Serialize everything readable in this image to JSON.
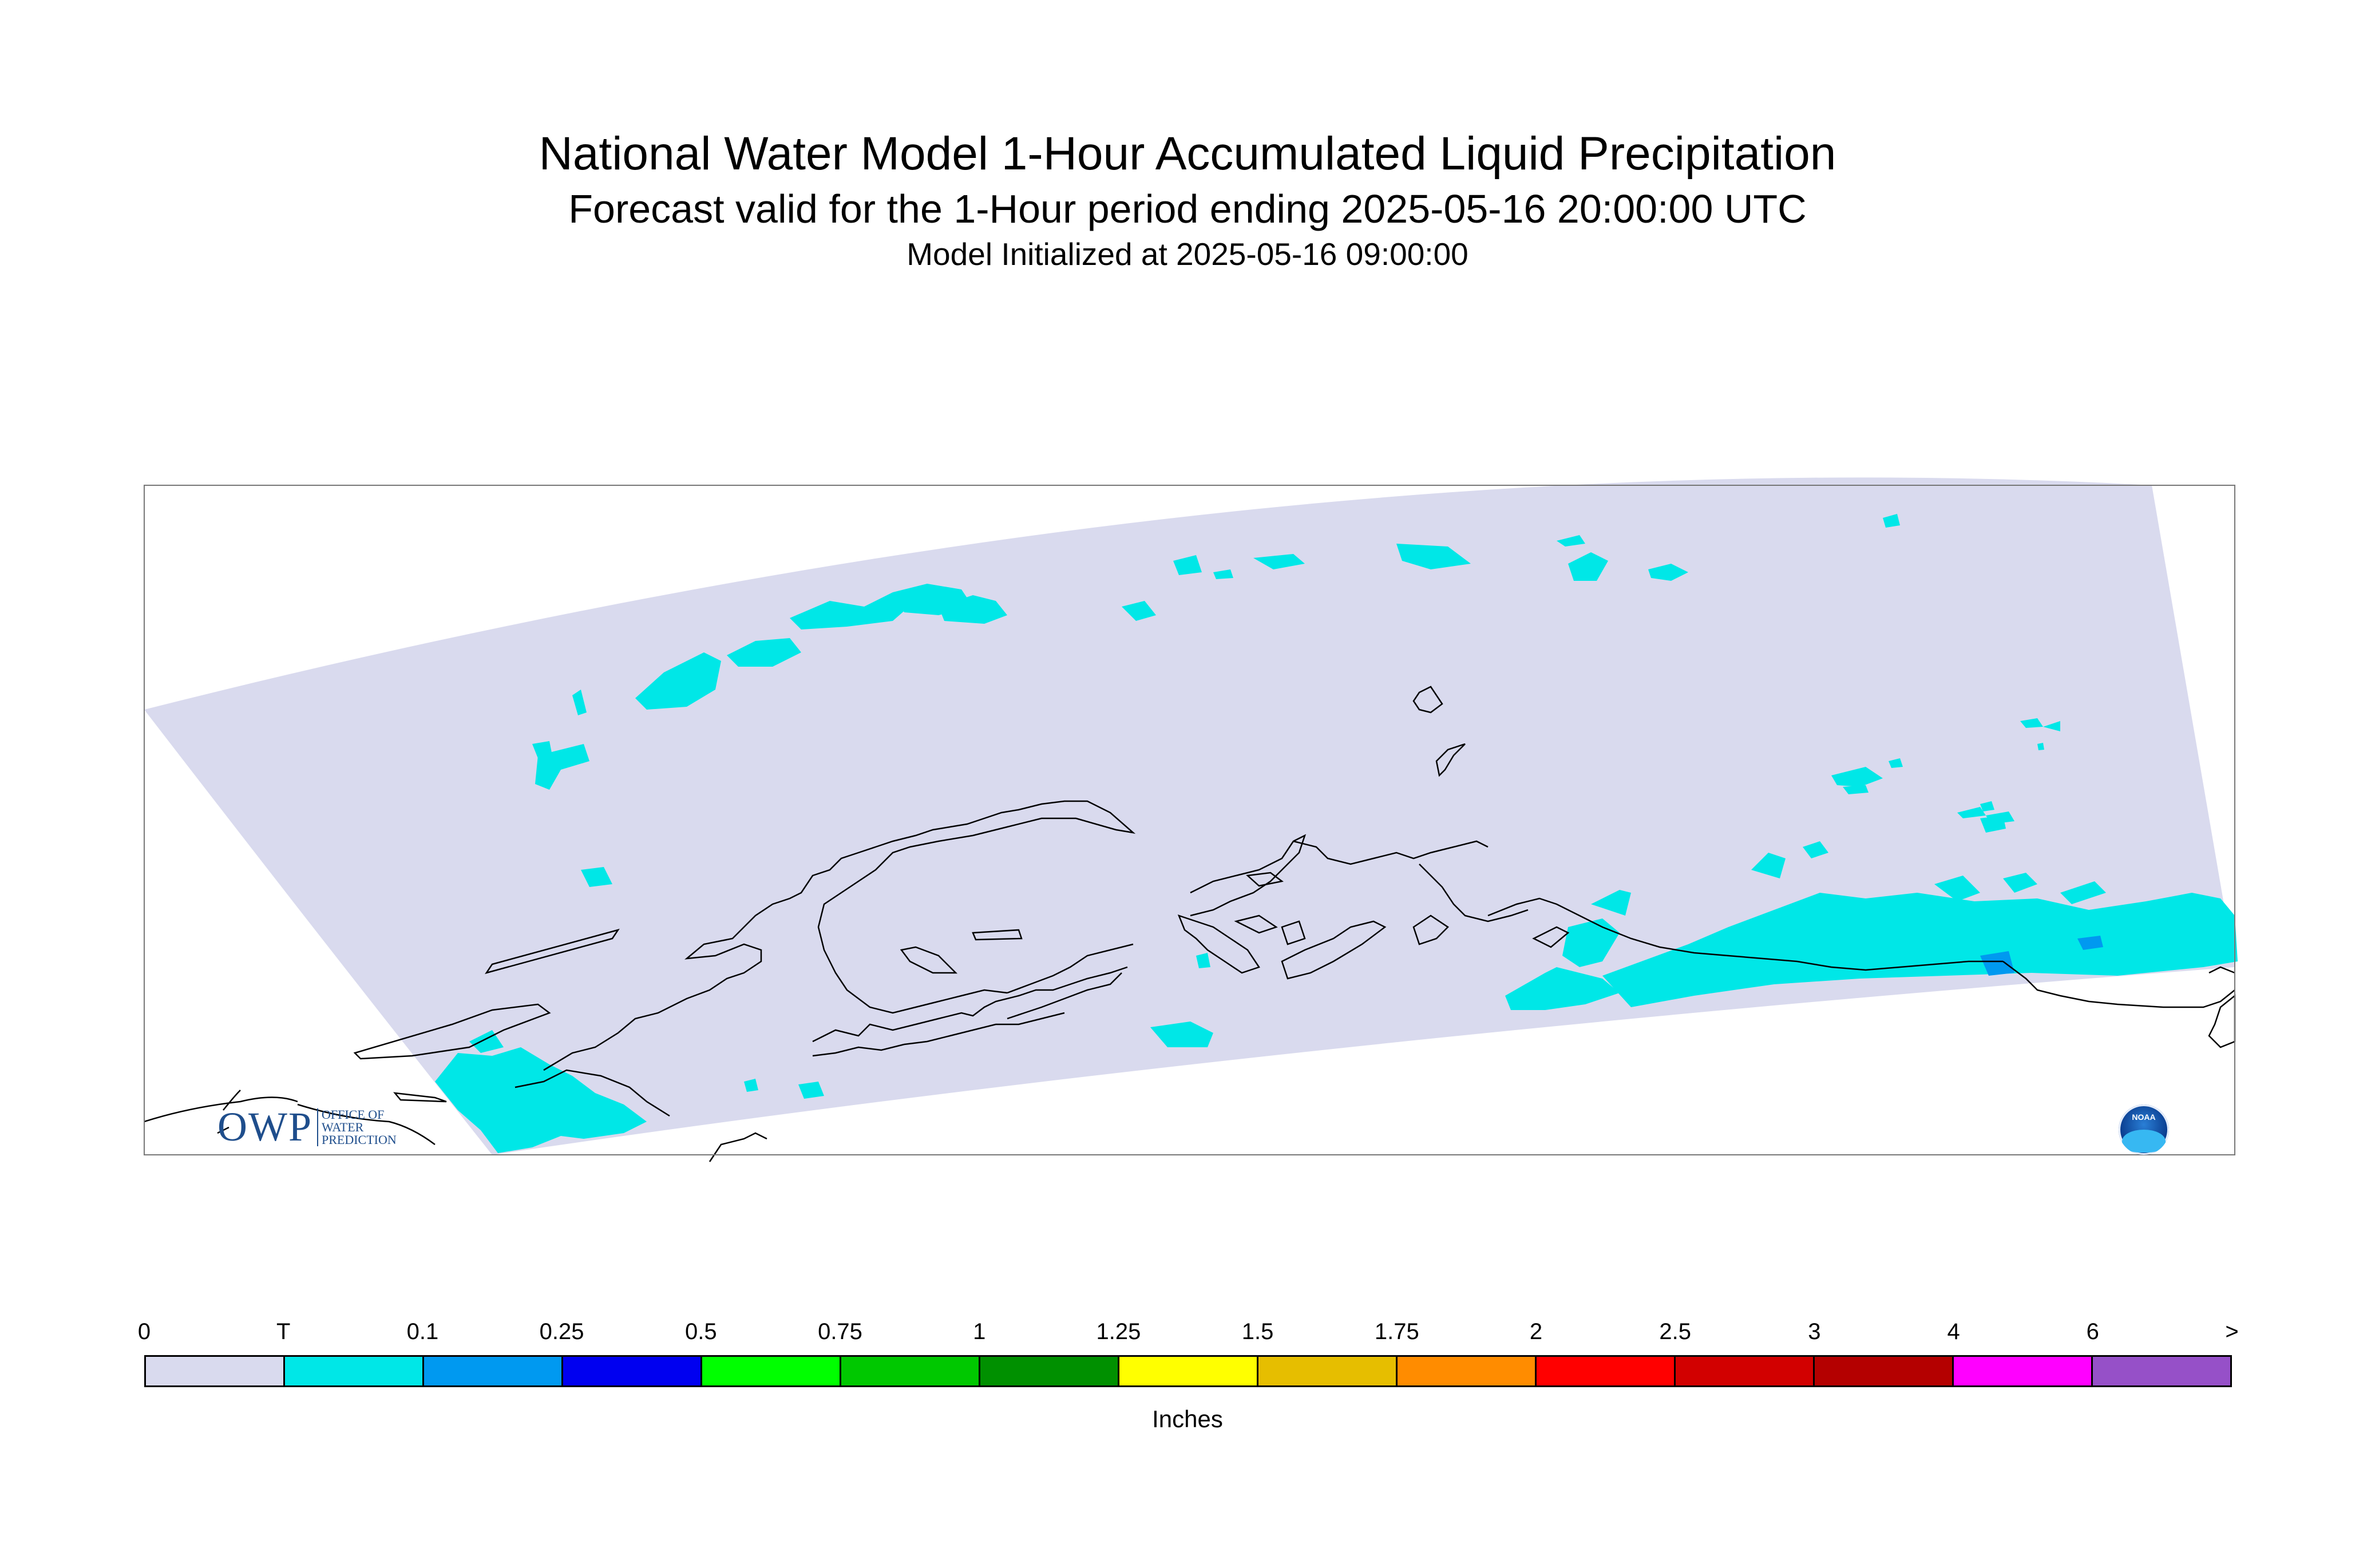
{
  "title": {
    "line1": "National Water Model 1-Hour Accumulated Liquid Precipitation",
    "line2": "Forecast valid for the 1-Hour period ending 2025-05-16 20:00:00 UTC",
    "line3": "Model Initialized at 2025-05-16 09:00:00"
  },
  "map": {
    "domain_color": "#d9daee",
    "coastline_color": "#000000",
    "precip_trace_color": "#00e7e7",
    "precip_01_color": "#0099f0"
  },
  "logos": {
    "owp": {
      "mark": "OWP",
      "line1": "OFFICE OF",
      "line2": "WATER",
      "line3": "PREDICTION"
    },
    "noaa": {
      "mark": "NOAA"
    }
  },
  "legend": {
    "ticks": [
      "0",
      "T",
      "0.1",
      "0.25",
      "0.5",
      "0.75",
      "1",
      "1.25",
      "1.5",
      "1.75",
      "2",
      "2.5",
      "3",
      "4",
      "6",
      ">"
    ],
    "colors": [
      "#d9daee",
      "#00e7e7",
      "#0099f0",
      "#0000f0",
      "#00ff00",
      "#00c800",
      "#009000",
      "#ffff00",
      "#e6be00",
      "#ff8c00",
      "#ff0000",
      "#d20000",
      "#b40000",
      "#ff00ff",
      "#9650c8"
    ],
    "units": "Inches"
  }
}
